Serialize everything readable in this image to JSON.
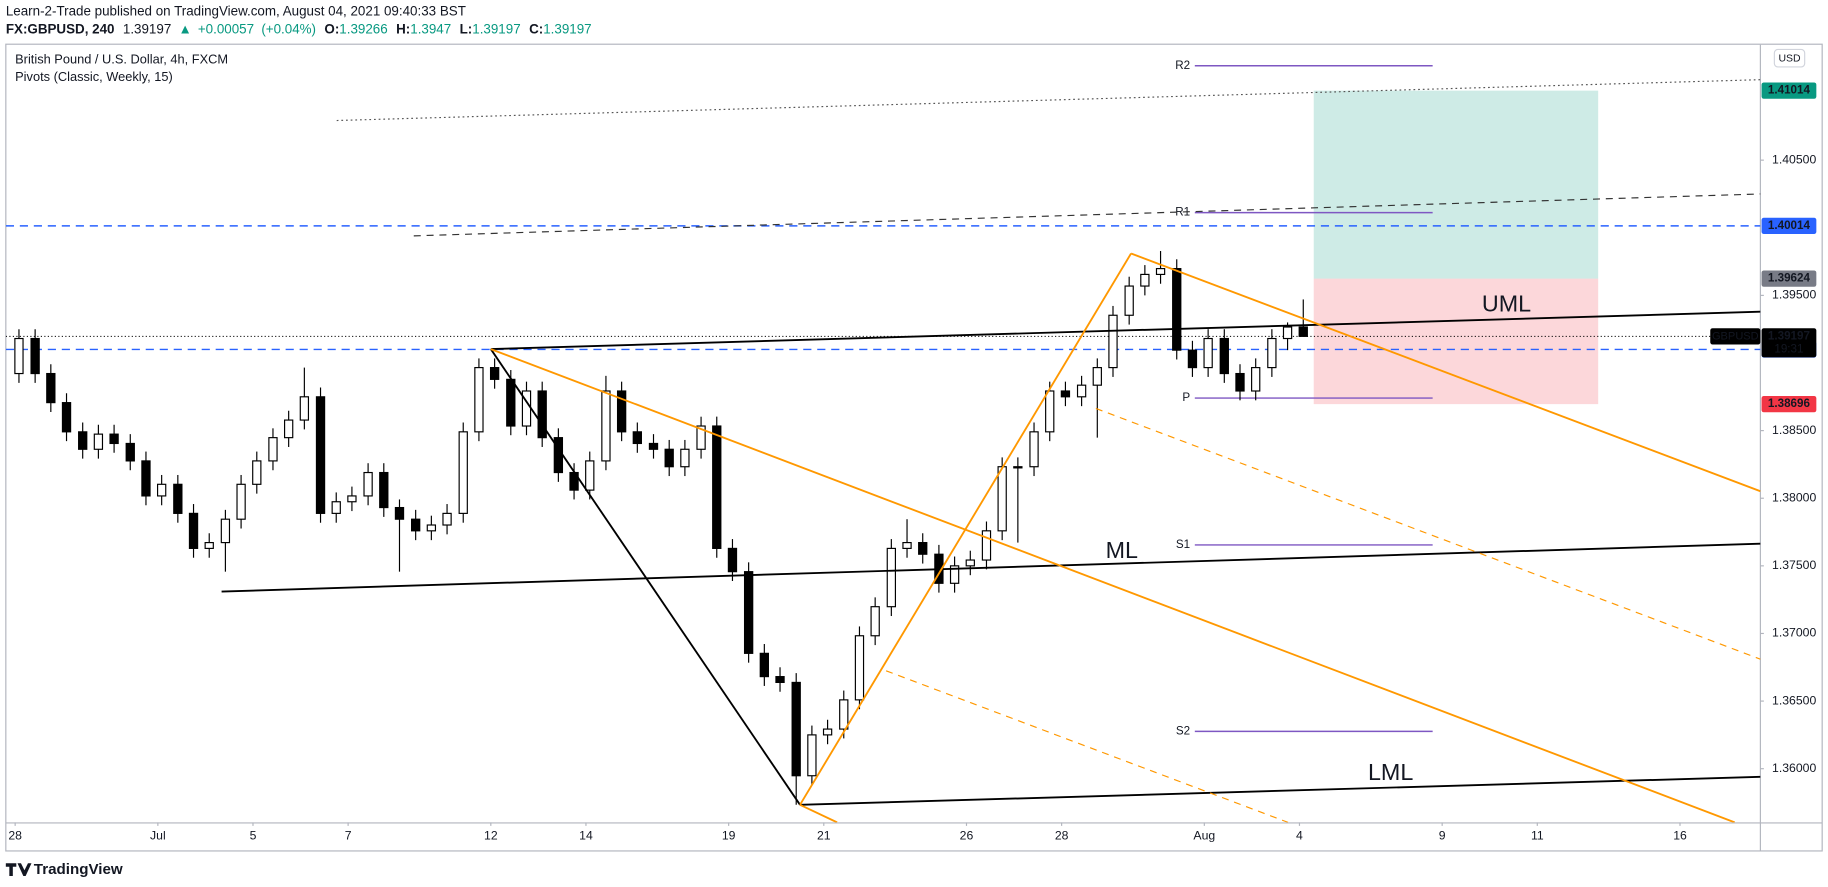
{
  "header": {
    "publisher": "Learn-2-Trade published on TradingView.com, August 04, 2021 09:40:33 BST",
    "symbol": "FX:GBPUSD, 240",
    "direction": "▲",
    "change": {
      "value": 0.00057,
      "label": "+0.00057"
    },
    "change_pct": {
      "value": 0.04,
      "label": "(+0.04%)"
    },
    "ohlc_keys": [
      "O:",
      "H:",
      "L:",
      "C:"
    ]
  },
  "chart_data": {
    "type": "candlestick",
    "title": "British Pound / U.S. Dollar, 4h, FXCM",
    "indicator": "Pivots (Classic, Weekly, 15)",
    "currency": "USD",
    "symbol_tag": "GBPUSD",
    "countdown": "19:31",
    "up_color": "#ffffff",
    "down_color": "#000000",
    "wick_color": "#000000",
    "x": [
      0.08,
      0.42,
      0.75,
      1.08,
      1.42,
      1.75,
      2.08,
      2.42,
      2.75,
      3.08,
      3.42,
      3.75,
      4.08,
      4.42,
      4.75,
      5.08,
      5.42,
      5.75,
      6.08,
      6.42,
      6.75,
      7.08,
      7.42,
      7.75,
      8.08,
      8.42,
      8.75,
      9.08,
      9.42,
      9.75,
      10.08,
      10.42,
      10.75,
      11.08,
      11.42,
      11.75,
      12.08,
      12.42,
      12.75,
      13.08,
      13.42,
      13.75,
      14.08,
      14.42,
      14.75,
      15.08,
      15.42,
      15.75,
      16.08,
      16.42,
      16.75,
      17.08,
      17.42,
      17.75,
      18.08,
      18.42,
      18.75,
      19.08,
      19.42,
      19.75,
      20.08,
      20.42,
      20.75,
      21.08,
      21.42,
      21.75,
      22.08,
      22.42,
      22.75,
      23.08,
      23.42,
      23.75,
      24.08,
      24.42,
      24.75,
      25.08,
      25.42,
      25.75,
      26.08,
      26.42,
      26.75,
      27.08
    ],
    "ohlc": [
      [
        1.38922,
        1.3925,
        1.38853,
        1.39181
      ],
      [
        1.39181,
        1.3925,
        1.38853,
        1.38922
      ],
      [
        1.38922,
        1.38991,
        1.38638,
        1.38707
      ],
      [
        1.38707,
        1.38776,
        1.38422,
        1.38491
      ],
      [
        1.38491,
        1.3856,
        1.38293,
        1.38362
      ],
      [
        1.38362,
        1.38543,
        1.38293,
        1.38474
      ],
      [
        1.38474,
        1.38543,
        1.38336,
        1.38405
      ],
      [
        1.38405,
        1.38474,
        1.38207,
        1.38276
      ],
      [
        1.38276,
        1.38345,
        1.37948,
        1.38017
      ],
      [
        1.38017,
        1.38172,
        1.37948,
        1.38103
      ],
      [
        1.38103,
        1.38172,
        1.37819,
        1.37888
      ],
      [
        1.37888,
        1.37957,
        1.3756,
        1.37629
      ],
      [
        1.37629,
        1.37741,
        1.3756,
        1.37672
      ],
      [
        1.37672,
        1.37914,
        1.37457,
        1.37845
      ],
      [
        1.37845,
        1.38172,
        1.37776,
        1.38103
      ],
      [
        1.38103,
        1.38345,
        1.38034,
        1.38276
      ],
      [
        1.38276,
        1.38517,
        1.38207,
        1.38448
      ],
      [
        1.38448,
        1.38647,
        1.38379,
        1.38578
      ],
      [
        1.38578,
        1.38966,
        1.38509,
        1.3875
      ],
      [
        1.3875,
        1.38819,
        1.37819,
        1.37888
      ],
      [
        1.37888,
        1.38043,
        1.37819,
        1.37974
      ],
      [
        1.37974,
        1.38086,
        1.37905,
        1.38017
      ],
      [
        1.38017,
        1.38259,
        1.37948,
        1.3819
      ],
      [
        1.3819,
        1.38259,
        1.37862,
        1.37931
      ],
      [
        1.37931,
        1.37991,
        1.37457,
        1.37845
      ],
      [
        1.37845,
        1.37914,
        1.3769,
        1.37759
      ],
      [
        1.37759,
        1.37871,
        1.3769,
        1.37802
      ],
      [
        1.37802,
        1.37957,
        1.37733,
        1.37888
      ],
      [
        1.37888,
        1.3856,
        1.37819,
        1.38491
      ],
      [
        1.38491,
        1.39034,
        1.38422,
        1.38966
      ],
      [
        1.38966,
        1.39034,
        1.3881,
        1.38879
      ],
      [
        1.38879,
        1.38948,
        1.38466,
        1.38534
      ],
      [
        1.38534,
        1.38862,
        1.38466,
        1.38793
      ],
      [
        1.38793,
        1.38862,
        1.38379,
        1.38448
      ],
      [
        1.38448,
        1.38517,
        1.38121,
        1.3819
      ],
      [
        1.3819,
        1.38259,
        1.37991,
        1.3806
      ],
      [
        1.3806,
        1.38345,
        1.37991,
        1.38276
      ],
      [
        1.38276,
        1.38905,
        1.38207,
        1.38793
      ],
      [
        1.38793,
        1.38862,
        1.38422,
        1.38491
      ],
      [
        1.38491,
        1.3856,
        1.38336,
        1.38405
      ],
      [
        1.38405,
        1.38474,
        1.38293,
        1.38362
      ],
      [
        1.38362,
        1.38431,
        1.38164,
        1.38233
      ],
      [
        1.38233,
        1.38431,
        1.38164,
        1.38362
      ],
      [
        1.38362,
        1.38603,
        1.38293,
        1.38534
      ],
      [
        1.38534,
        1.38603,
        1.3756,
        1.37629
      ],
      [
        1.37629,
        1.37698,
        1.37388,
        1.37457
      ],
      [
        1.37457,
        1.37526,
        1.36784,
        1.36853
      ],
      [
        1.36853,
        1.36922,
        1.36612,
        1.36681
      ],
      [
        1.36681,
        1.3675,
        1.36569,
        1.36638
      ],
      [
        1.36638,
        1.36707,
        1.35733,
        1.35948
      ],
      [
        1.35948,
        1.36319,
        1.35879,
        1.3625
      ],
      [
        1.3625,
        1.36362,
        1.36181,
        1.36293
      ],
      [
        1.36293,
        1.36578,
        1.36224,
        1.36509
      ],
      [
        1.36509,
        1.37052,
        1.3644,
        1.36983
      ],
      [
        1.36983,
        1.37267,
        1.36914,
        1.37198
      ],
      [
        1.37198,
        1.37698,
        1.37129,
        1.37629
      ],
      [
        1.37629,
        1.37845,
        1.3756,
        1.37672
      ],
      [
        1.37672,
        1.37741,
        1.37517,
        1.37586
      ],
      [
        1.37586,
        1.37655,
        1.37302,
        1.37371
      ],
      [
        1.37371,
        1.37569,
        1.37302,
        1.375
      ],
      [
        1.375,
        1.37612,
        1.37431,
        1.37543
      ],
      [
        1.37543,
        1.37828,
        1.37474,
        1.37759
      ],
      [
        1.37759,
        1.38302,
        1.3769,
        1.38233
      ],
      [
        1.38233,
        1.38302,
        1.37672,
        1.38233
      ],
      [
        1.38233,
        1.3856,
        1.38164,
        1.38491
      ],
      [
        1.38491,
        1.38862,
        1.38422,
        1.38793
      ],
      [
        1.38793,
        1.38862,
        1.38681,
        1.3875
      ],
      [
        1.3875,
        1.38905,
        1.38681,
        1.38836
      ],
      [
        1.38836,
        1.39034,
        1.38448,
        1.38966
      ],
      [
        1.38966,
        1.39422,
        1.38897,
        1.39353
      ],
      [
        1.39353,
        1.39638,
        1.39284,
        1.39569
      ],
      [
        1.39569,
        1.39724,
        1.395,
        1.39655
      ],
      [
        1.39655,
        1.39828,
        1.39586,
        1.39698
      ],
      [
        1.39698,
        1.39767,
        1.39026,
        1.39095
      ],
      [
        1.39095,
        1.39164,
        1.38897,
        1.38966
      ],
      [
        1.38966,
        1.3925,
        1.38897,
        1.39181
      ],
      [
        1.39181,
        1.3925,
        1.38853,
        1.38922
      ],
      [
        1.38922,
        1.38991,
        1.38724,
        1.38793
      ],
      [
        1.38793,
        1.39034,
        1.38724,
        1.38966
      ],
      [
        1.38966,
        1.3925,
        1.38897,
        1.39181
      ],
      [
        1.39181,
        1.393,
        1.39095,
        1.39266
      ],
      [
        1.39266,
        1.3947,
        1.39197,
        1.39197
      ]
    ],
    "xlim": [
      -0.196,
      36.69
    ],
    "ylim": [
      1.35603,
      1.41353
    ],
    "grid": false,
    "xticks": [
      {
        "value": 0,
        "label": "28"
      },
      {
        "value": 3,
        "label": "Jul"
      },
      {
        "value": 5,
        "label": "5"
      },
      {
        "value": 7,
        "label": "7"
      },
      {
        "value": 10,
        "label": "12"
      },
      {
        "value": 12,
        "label": "14"
      },
      {
        "value": 15,
        "label": "19"
      },
      {
        "value": 17,
        "label": "21"
      },
      {
        "value": 20,
        "label": "26"
      },
      {
        "value": 22,
        "label": "28"
      },
      {
        "value": 25,
        "label": "Aug"
      },
      {
        "value": 27,
        "label": "4"
      },
      {
        "value": 30,
        "label": "9"
      },
      {
        "value": 32,
        "label": "11"
      },
      {
        "value": 35,
        "label": "16"
      }
    ],
    "yticks": [
      {
        "value": 1.36,
        "label": "1.36000"
      },
      {
        "value": 1.365,
        "label": "1.36500"
      },
      {
        "value": 1.37,
        "label": "1.37000"
      },
      {
        "value": 1.375,
        "label": "1.37500"
      },
      {
        "value": 1.38,
        "label": "1.38000"
      },
      {
        "value": 1.385,
        "label": "1.38500"
      },
      {
        "value": 1.395,
        "label": "1.39500"
      },
      {
        "value": 1.405,
        "label": "1.40500"
      }
    ],
    "hlines": [
      {
        "value": 1.40014,
        "color": "#2962ff"
      },
      {
        "value": 1.391,
        "label": "1.39100",
        "color": "#2962ff"
      }
    ],
    "last_line_color": "#000000",
    "position": {
      "x": [
        27.3,
        33.28
      ],
      "target": 1.41014,
      "entry": 1.39624,
      "stop": 1.38696,
      "profit_color": "#089981",
      "loss_color": "#f23645",
      "entry_color": "#787b86"
    },
    "pivots": {
      "x": [
        24.8,
        29.8
      ],
      "color": "#7e57c2",
      "levels": [
        {
          "name": "R2",
          "value": 1.41198
        },
        {
          "name": "R1",
          "value": 1.40112
        },
        {
          "name": "P",
          "value": 1.38741
        },
        {
          "name": "S1",
          "value": 1.37655
        },
        {
          "name": "S2",
          "value": 1.36276
        }
      ]
    },
    "drawings": [
      {
        "from": [
          10.0,
          1.39103
        ],
        "to": [
          36.69,
          1.39379
        ],
        "color": "#000000",
        "style": "solid",
        "label": "UML"
      },
      {
        "from": [
          4.34,
          1.3731
        ],
        "to": [
          36.69,
          1.37664
        ],
        "color": "#000000",
        "style": "solid",
        "label": "ML"
      },
      {
        "from": [
          16.5,
          1.35733
        ],
        "to": [
          36.69,
          1.3594
        ],
        "color": "#000000",
        "style": "solid",
        "label": "LML"
      },
      {
        "from": [
          10.0,
          1.39103
        ],
        "to": [
          16.5,
          1.35733
        ],
        "color": "#000000",
        "style": "solid"
      },
      {
        "from": [
          16.5,
          1.35733
        ],
        "to": [
          23.46,
          1.3981
        ],
        "color": "#ff9800",
        "style": "solid"
      },
      {
        "from": [
          23.46,
          1.3981
        ],
        "to": [
          36.69,
          1.38052
        ],
        "color": "#ff9800",
        "style": "solid"
      },
      {
        "from": [
          10.0,
          1.39103
        ],
        "to": [
          36.15,
          1.35603
        ],
        "color": "#ff9800",
        "style": "solid"
      },
      {
        "from": [
          16.5,
          1.35733
        ],
        "to": [
          17.28,
          1.35603
        ],
        "color": "#ff9800",
        "style": "solid"
      },
      {
        "from": [
          18.31,
          1.36724
        ],
        "to": [
          26.76,
          1.35603
        ],
        "color": "#ff9800",
        "style": "dashed"
      },
      {
        "from": [
          22.72,
          1.38664
        ],
        "to": [
          36.69,
          1.3681
        ],
        "color": "#ff9800",
        "style": "dashed"
      },
      {
        "from": [
          6.76,
          1.40793
        ],
        "to": [
          36.69,
          1.41095
        ],
        "color": "#555555",
        "style": "dotted"
      },
      {
        "from": [
          8.38,
          1.3994
        ],
        "to": [
          36.69,
          1.4025
        ],
        "color": "#333333",
        "style": "dashed"
      }
    ]
  },
  "footer": {
    "brand": "TradingView"
  }
}
